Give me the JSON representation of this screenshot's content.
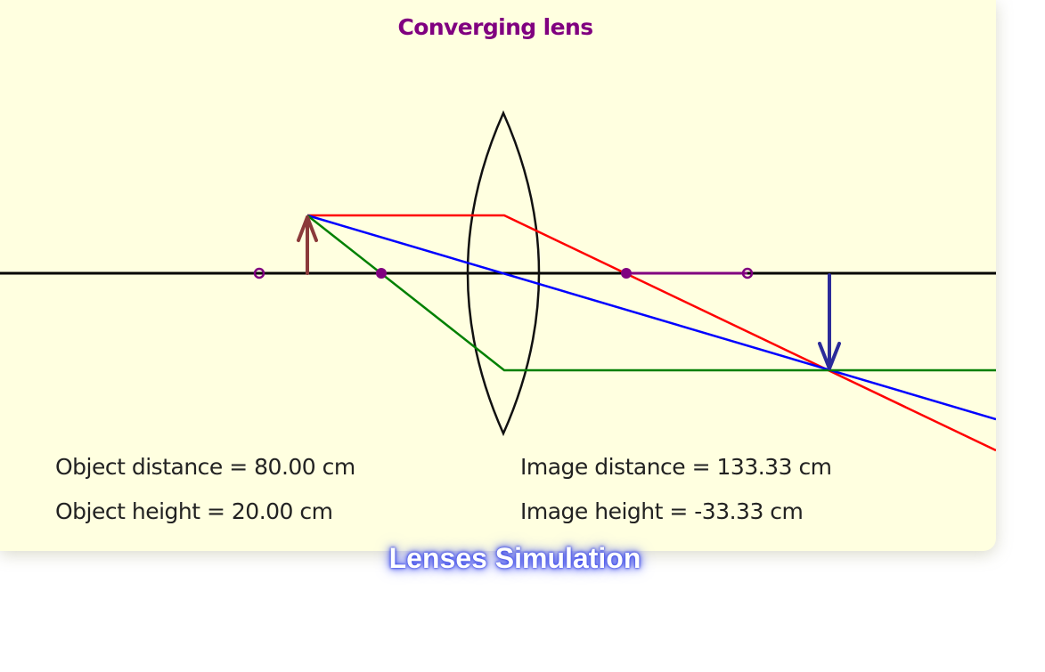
{
  "diagram": {
    "title": "Converging lens",
    "readouts": {
      "object_distance": "Object distance = 80.00 cm",
      "object_height": "Object height = 20.00 cm",
      "image_distance": "Image distance = 133.33 cm",
      "image_height": "Image height = -33.33 cm"
    },
    "colors": {
      "background": "#ffffe0",
      "title": "#800080",
      "object_arrow": "#8b3a3a",
      "image_arrow": "#2b2b9a",
      "parallel_ray": "#ff0000",
      "central_ray": "#0000ff",
      "focal_ray": "#008000",
      "focal_points": "#800080",
      "axis": "#000000"
    }
  },
  "caption": "Lenses Simulation"
}
